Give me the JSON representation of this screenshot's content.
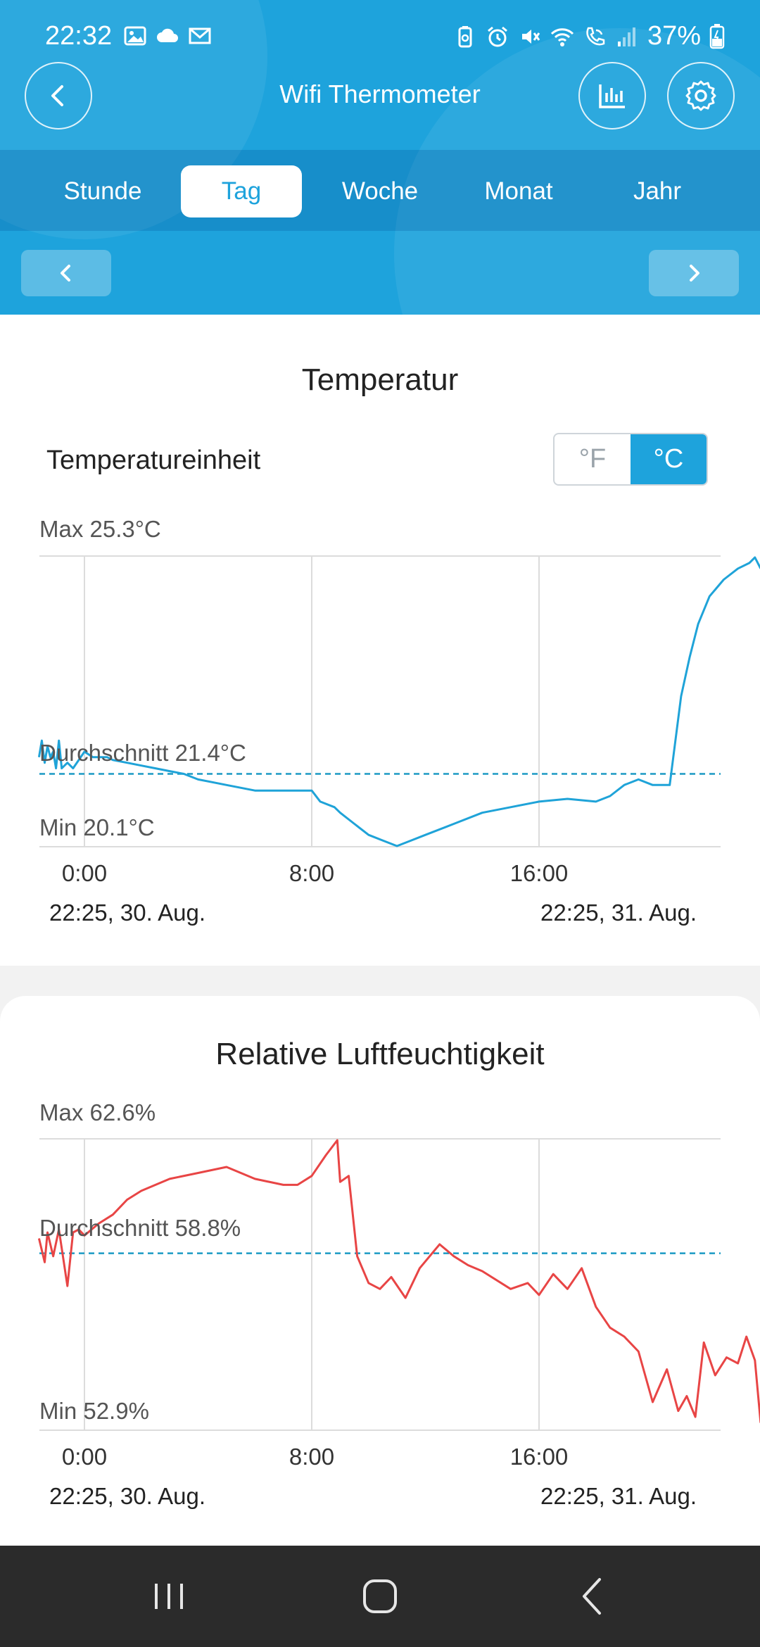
{
  "status_bar": {
    "time": "22:32",
    "battery": "37%"
  },
  "header": {
    "title": "Wifi Thermometer"
  },
  "tabs": [
    "Stunde",
    "Tag",
    "Woche",
    "Monat",
    "Jahr"
  ],
  "active_tab": "Tag",
  "temperature": {
    "title": "Temperatur",
    "unit_label": "Temperatureinheit",
    "unit_f": "°F",
    "unit_c": "°C",
    "unit_selected": "°C",
    "max_label": "Max 25.3°C",
    "avg_label": "Durchschnitt 21.4°C",
    "min_label": "Min 20.1°C",
    "ticks": [
      "0:00",
      "8:00",
      "16:00"
    ],
    "start_label": "22:25,  30. Aug.",
    "end_label": "22:25,  31. Aug."
  },
  "humidity": {
    "title": "Relative Luftfeuchtigkeit",
    "max_label": "Max 62.6%",
    "avg_label": "Durchschnitt 58.8%",
    "min_label": "Min 52.9%",
    "ticks": [
      "0:00",
      "8:00",
      "16:00"
    ],
    "start_label": "22:25,  30. Aug.",
    "end_label": "22:25,  31. Aug."
  },
  "colors": {
    "accent": "#1ea3dc",
    "temperature_line": "#1fa3d8",
    "humidity_line": "#e84545",
    "average_line": "#1b9ac4"
  },
  "chart_data": [
    {
      "type": "line",
      "title": "Temperatur",
      "xlabel": "",
      "ylabel": "",
      "x_ticks": [
        "0:00",
        "8:00",
        "16:00"
      ],
      "ylim": [
        20.1,
        25.3
      ],
      "average": 21.4,
      "series": [
        {
          "values": [
            [
              -1.6,
              21.7
            ],
            [
              -1.5,
              22.0
            ],
            [
              -1.4,
              21.6
            ],
            [
              -1.3,
              21.9
            ],
            [
              -1.2,
              21.7
            ],
            [
              -1.1,
              21.8
            ],
            [
              -1.0,
              21.5
            ],
            [
              -0.9,
              22.0
            ],
            [
              -0.8,
              21.5
            ],
            [
              -0.6,
              21.6
            ],
            [
              -0.4,
              21.5
            ],
            [
              0.0,
              21.8
            ],
            [
              0.3,
              21.7
            ],
            [
              0.8,
              21.7
            ],
            [
              1.0,
              21.65
            ],
            [
              1.5,
              21.6
            ],
            [
              2.0,
              21.55
            ],
            [
              2.5,
              21.5
            ],
            [
              3.0,
              21.45
            ],
            [
              3.5,
              21.4
            ],
            [
              4.0,
              21.3
            ],
            [
              4.5,
              21.25
            ],
            [
              5.0,
              21.2
            ],
            [
              6.0,
              21.1
            ],
            [
              7.0,
              21.1
            ],
            [
              8.0,
              21.1
            ],
            [
              8.3,
              20.9
            ],
            [
              8.8,
              20.8
            ],
            [
              9.0,
              20.7
            ],
            [
              9.5,
              20.5
            ],
            [
              10.0,
              20.3
            ],
            [
              10.5,
              20.2
            ],
            [
              11.0,
              20.1
            ],
            [
              11.5,
              20.2
            ],
            [
              12.0,
              20.3
            ],
            [
              13.0,
              20.5
            ],
            [
              14.0,
              20.7
            ],
            [
              15.0,
              20.8
            ],
            [
              16.0,
              20.9
            ],
            [
              17.0,
              20.95
            ],
            [
              18.0,
              20.9
            ],
            [
              18.5,
              21.0
            ],
            [
              19.0,
              21.2
            ],
            [
              19.5,
              21.3
            ],
            [
              20.0,
              21.2
            ],
            [
              20.6,
              21.2
            ],
            [
              20.8,
              22.0
            ],
            [
              21.0,
              22.8
            ],
            [
              21.3,
              23.5
            ],
            [
              21.6,
              24.1
            ],
            [
              22.0,
              24.6
            ],
            [
              22.5,
              24.9
            ],
            [
              23.0,
              25.1
            ],
            [
              23.4,
              25.2
            ],
            [
              23.6,
              25.3
            ],
            [
              23.8,
              25.1
            ]
          ]
        }
      ]
    },
    {
      "type": "line",
      "title": "Relative Luftfeuchtigkeit",
      "xlabel": "",
      "ylabel": "",
      "x_ticks": [
        "0:00",
        "8:00",
        "16:00"
      ],
      "ylim": [
        52.9,
        62.6
      ],
      "average": 58.8,
      "series": [
        {
          "values": [
            [
              -1.6,
              59.3
            ],
            [
              -1.4,
              58.5
            ],
            [
              -1.3,
              59.5
            ],
            [
              -1.1,
              58.7
            ],
            [
              -0.9,
              59.6
            ],
            [
              -0.6,
              57.7
            ],
            [
              -0.4,
              59.5
            ],
            [
              -0.2,
              59.6
            ],
            [
              0.0,
              59.4
            ],
            [
              0.5,
              59.8
            ],
            [
              1.0,
              60.1
            ],
            [
              1.5,
              60.6
            ],
            [
              2.0,
              60.9
            ],
            [
              3.0,
              61.3
            ],
            [
              4.0,
              61.5
            ],
            [
              5.0,
              61.7
            ],
            [
              6.0,
              61.3
            ],
            [
              7.0,
              61.1
            ],
            [
              7.5,
              61.1
            ],
            [
              8.0,
              61.4
            ],
            [
              8.5,
              62.1
            ],
            [
              8.9,
              62.6
            ],
            [
              9.0,
              61.2
            ],
            [
              9.3,
              61.4
            ],
            [
              9.6,
              58.7
            ],
            [
              10.0,
              57.8
            ],
            [
              10.4,
              57.6
            ],
            [
              10.8,
              58.0
            ],
            [
              11.3,
              57.3
            ],
            [
              11.8,
              58.3
            ],
            [
              12.5,
              59.1
            ],
            [
              13.0,
              58.7
            ],
            [
              13.5,
              58.4
            ],
            [
              14.0,
              58.2
            ],
            [
              15.0,
              57.6
            ],
            [
              15.6,
              57.8
            ],
            [
              16.0,
              57.4
            ],
            [
              16.5,
              58.1
            ],
            [
              17.0,
              57.6
            ],
            [
              17.5,
              58.3
            ],
            [
              18.0,
              57.0
            ],
            [
              18.5,
              56.3
            ],
            [
              19.0,
              56.0
            ],
            [
              19.5,
              55.5
            ],
            [
              20.0,
              53.8
            ],
            [
              20.5,
              54.9
            ],
            [
              20.9,
              53.5
            ],
            [
              21.2,
              54.0
            ],
            [
              21.5,
              53.3
            ],
            [
              21.8,
              55.8
            ],
            [
              22.2,
              54.7
            ],
            [
              22.6,
              55.3
            ],
            [
              23.0,
              55.1
            ],
            [
              23.3,
              56.0
            ],
            [
              23.6,
              55.2
            ],
            [
              23.8,
              53.1
            ]
          ]
        }
      ]
    }
  ]
}
